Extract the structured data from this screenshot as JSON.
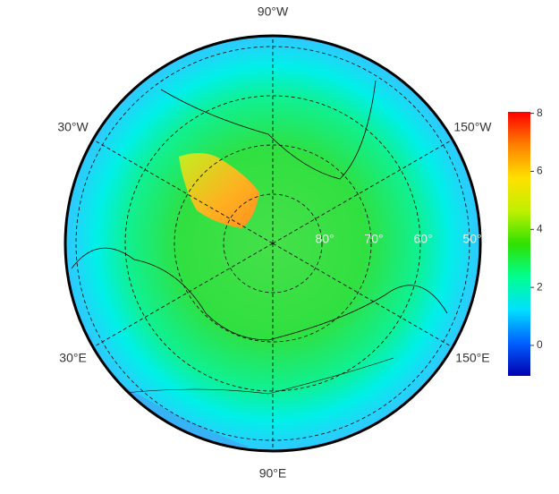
{
  "map": {
    "longitudes": [
      {
        "value": -90,
        "label": "90°W"
      },
      {
        "value": -30,
        "label": "30°W"
      },
      {
        "value": -150,
        "label": "150°W"
      },
      {
        "value": 30,
        "label": "30°E"
      },
      {
        "value": 150,
        "label": "150°E"
      },
      {
        "value": 90,
        "label": "90°E"
      }
    ],
    "latitudes": [
      {
        "value": 80,
        "label": "80°"
      },
      {
        "value": 70,
        "label": "70°"
      },
      {
        "value": 60,
        "label": "60°"
      },
      {
        "value": 50,
        "label": "50°"
      }
    ],
    "colorbar": {
      "lim": [
        -1.05,
        8.05
      ],
      "ticks": [
        0,
        2,
        4,
        6,
        8
      ],
      "colors": [
        "#0000b0",
        "#0060ff",
        "#00e0ff",
        "#00ff90",
        "#30e000",
        "#c0f000",
        "#ffe000",
        "#ff8000",
        "#ff0000"
      ]
    }
  }
}
